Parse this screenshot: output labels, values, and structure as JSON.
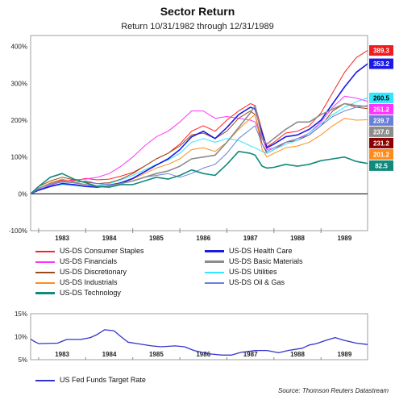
{
  "header": {
    "title": "Sector Return",
    "subtitle": "Return 10/31/1982 through 12/31/1989"
  },
  "source": "Source: Thomson Reuters Datastream",
  "chart_data": [
    {
      "type": "line",
      "title": "Sector Return",
      "subtitle": "Return 10/31/1982 through 12/31/1989",
      "x_ticks": [
        "1983",
        "1984",
        "1985",
        "1986",
        "1987",
        "1988",
        "1989"
      ],
      "x_range": [
        1982.83,
        1989.99
      ],
      "y_ticks": [
        "400%",
        "300%",
        "200%",
        "100%",
        "0%",
        "-100%"
      ],
      "y_tick_values": [
        400,
        300,
        200,
        100,
        0,
        -100
      ],
      "ylim": [
        -100,
        430
      ],
      "grid": false,
      "legend": "below",
      "series": [
        {
          "name": "US-DS Consumer Staples",
          "color": "#ff2020",
          "end_label": "389.3",
          "label_bg": "#ee1c1c",
          "label_fg": "#ffffff",
          "width": 1.0,
          "x": [
            1982.83,
            1983.0,
            1983.25,
            1983.5,
            1983.75,
            1984.0,
            1984.25,
            1984.5,
            1984.75,
            1985.0,
            1985.25,
            1985.5,
            1985.75,
            1986.0,
            1986.25,
            1986.5,
            1986.75,
            1987.0,
            1987.25,
            1987.5,
            1987.6,
            1987.75,
            1987.85,
            1988.0,
            1988.25,
            1988.5,
            1988.75,
            1989.0,
            1989.25,
            1989.5,
            1989.75,
            1989.99
          ],
          "y": [
            0,
            15,
            28,
            38,
            35,
            42,
            38,
            40,
            48,
            58,
            75,
            95,
            110,
            135,
            170,
            185,
            170,
            200,
            225,
            245,
            240,
            170,
            128,
            140,
            165,
            170,
            185,
            220,
            275,
            330,
            370,
            389.3
          ]
        },
        {
          "name": "US-DS Health Care",
          "color": "#1a1ae6",
          "end_label": "353.2",
          "label_bg": "#1a1ae6",
          "label_fg": "#ffffff",
          "width": 1.6,
          "x": [
            1982.83,
            1983.0,
            1983.25,
            1983.5,
            1983.75,
            1984.0,
            1984.25,
            1984.5,
            1984.75,
            1985.0,
            1985.25,
            1985.5,
            1985.75,
            1986.0,
            1986.25,
            1986.5,
            1986.75,
            1987.0,
            1987.25,
            1987.5,
            1987.6,
            1987.75,
            1987.85,
            1988.0,
            1988.25,
            1988.5,
            1988.75,
            1989.0,
            1989.25,
            1989.5,
            1989.75,
            1989.99
          ],
          "y": [
            0,
            10,
            20,
            28,
            25,
            20,
            18,
            22,
            30,
            42,
            60,
            78,
            95,
            120,
            155,
            170,
            150,
            180,
            215,
            235,
            230,
            165,
            125,
            135,
            155,
            160,
            175,
            200,
            245,
            290,
            330,
            353.2
          ]
        },
        {
          "name": "US-DS Financials",
          "color": "#ff33ff",
          "end_label": "251.2",
          "label_bg": "#ff33ff",
          "label_fg": "#ffffff",
          "width": 1.0,
          "x": [
            1982.83,
            1983.0,
            1983.25,
            1983.5,
            1983.75,
            1984.0,
            1984.25,
            1984.5,
            1984.75,
            1985.0,
            1985.25,
            1985.5,
            1985.75,
            1986.0,
            1986.25,
            1986.5,
            1986.75,
            1987.0,
            1987.25,
            1987.5,
            1987.6,
            1987.75,
            1987.85,
            1988.0,
            1988.25,
            1988.5,
            1988.75,
            1989.0,
            1989.25,
            1989.5,
            1989.75,
            1989.99
          ],
          "y": [
            0,
            12,
            22,
            35,
            38,
            40,
            45,
            55,
            75,
            100,
            130,
            155,
            170,
            195,
            225,
            225,
            205,
            210,
            205,
            200,
            195,
            150,
            120,
            125,
            140,
            150,
            165,
            195,
            235,
            265,
            260,
            251.2
          ]
        },
        {
          "name": "US-DS Basic Materials",
          "color": "#8c8c8c",
          "end_label": "237.0",
          "label_bg": "#8c8c8c",
          "label_fg": "#ffffff",
          "width": 1.6,
          "x": [
            1982.83,
            1983.0,
            1983.25,
            1983.5,
            1983.75,
            1984.0,
            1984.25,
            1984.5,
            1984.75,
            1985.0,
            1985.25,
            1985.5,
            1985.75,
            1986.0,
            1986.25,
            1986.5,
            1986.75,
            1987.0,
            1987.25,
            1987.5,
            1987.6,
            1987.75,
            1987.85,
            1988.0,
            1988.25,
            1988.5,
            1988.75,
            1989.0,
            1989.25,
            1989.5,
            1989.75,
            1989.99
          ],
          "y": [
            0,
            15,
            28,
            35,
            30,
            25,
            20,
            22,
            28,
            35,
            45,
            55,
            62,
            75,
            95,
            100,
            105,
            140,
            180,
            220,
            240,
            150,
            135,
            150,
            175,
            195,
            195,
            215,
            230,
            245,
            240,
            237.0
          ]
        },
        {
          "name": "US-DS Discretionary",
          "color": "#9b4a1e",
          "end_label": "231.2",
          "label_bg": "#8b0000",
          "label_fg": "#ffffff",
          "width": 1.0,
          "x": [
            1982.83,
            1983.0,
            1983.25,
            1983.5,
            1983.75,
            1984.0,
            1984.25,
            1984.5,
            1984.75,
            1985.0,
            1985.25,
            1985.5,
            1985.75,
            1986.0,
            1986.25,
            1986.5,
            1986.75,
            1987.0,
            1987.25,
            1987.5,
            1987.6,
            1987.75,
            1987.85,
            1988.0,
            1988.25,
            1988.5,
            1988.75,
            1989.0,
            1989.25,
            1989.5,
            1989.75,
            1989.99
          ],
          "y": [
            0,
            20,
            35,
            45,
            38,
            32,
            28,
            30,
            40,
            55,
            75,
            95,
            110,
            130,
            160,
            165,
            150,
            170,
            205,
            225,
            215,
            135,
            110,
            120,
            140,
            145,
            160,
            185,
            225,
            245,
            235,
            231.2
          ]
        },
        {
          "name": "US-DS Utilities",
          "color": "#33e6ff",
          "end_label": "260.5",
          "label_bg": "#33e6ff",
          "label_fg": "#000000",
          "width": 1.0,
          "x": [
            1982.83,
            1983.0,
            1983.25,
            1983.5,
            1983.75,
            1984.0,
            1984.25,
            1984.5,
            1984.75,
            1985.0,
            1985.25,
            1985.5,
            1985.75,
            1986.0,
            1986.25,
            1986.5,
            1986.75,
            1987.0,
            1987.25,
            1987.5,
            1987.6,
            1987.75,
            1987.85,
            1988.0,
            1988.25,
            1988.5,
            1988.75,
            1989.0,
            1989.25,
            1989.5,
            1989.75,
            1989.99
          ],
          "y": [
            0,
            12,
            20,
            25,
            22,
            20,
            22,
            28,
            38,
            50,
            65,
            80,
            92,
            110,
            140,
            150,
            140,
            150,
            145,
            130,
            125,
            115,
            110,
            120,
            135,
            145,
            165,
            190,
            215,
            235,
            250,
            260.5
          ]
        },
        {
          "name": "US-DS Industrials",
          "color": "#ff8c1a",
          "end_label": "201.2",
          "label_bg": "#ff8c1a",
          "label_fg": "#ffffff",
          "width": 1.0,
          "x": [
            1982.83,
            1983.0,
            1983.25,
            1983.5,
            1983.75,
            1984.0,
            1984.25,
            1984.5,
            1984.75,
            1985.0,
            1985.25,
            1985.5,
            1985.75,
            1986.0,
            1986.25,
            1986.5,
            1986.75,
            1987.0,
            1987.25,
            1987.5,
            1987.6,
            1987.75,
            1987.85,
            1988.0,
            1988.25,
            1988.5,
            1988.75,
            1989.0,
            1989.25,
            1989.5,
            1989.75,
            1989.99
          ],
          "y": [
            0,
            15,
            30,
            40,
            32,
            25,
            20,
            22,
            30,
            40,
            55,
            70,
            80,
            95,
            120,
            125,
            115,
            140,
            175,
            205,
            215,
            120,
            100,
            110,
            125,
            130,
            140,
            160,
            185,
            205,
            200,
            201.2
          ]
        },
        {
          "name": "US-DS Oil & Gas",
          "color": "#6a7fd9",
          "end_label": "239.7",
          "label_bg": "#6a7fd9",
          "label_fg": "#ffffff",
          "width": 1.0,
          "x": [
            1982.83,
            1983.0,
            1983.25,
            1983.5,
            1983.75,
            1984.0,
            1984.25,
            1984.5,
            1984.75,
            1985.0,
            1985.25,
            1985.5,
            1985.75,
            1986.0,
            1986.25,
            1986.5,
            1986.75,
            1987.0,
            1987.25,
            1987.5,
            1987.6,
            1987.75,
            1987.85,
            1988.0,
            1988.25,
            1988.5,
            1988.75,
            1989.0,
            1989.25,
            1989.5,
            1989.75,
            1989.99
          ],
          "y": [
            0,
            10,
            25,
            32,
            30,
            35,
            28,
            25,
            30,
            35,
            45,
            50,
            55,
            45,
            55,
            70,
            80,
            110,
            150,
            175,
            185,
            135,
            115,
            125,
            140,
            150,
            160,
            185,
            210,
            225,
            235,
            239.7
          ]
        },
        {
          "name": "US-DS Technology",
          "color": "#118a7a",
          "end_label": "82.5",
          "label_bg": "#118a7a",
          "label_fg": "#ffffff",
          "width": 1.6,
          "x": [
            1982.83,
            1983.0,
            1983.25,
            1983.5,
            1983.75,
            1984.0,
            1984.25,
            1984.5,
            1984.75,
            1985.0,
            1985.25,
            1985.5,
            1985.75,
            1986.0,
            1986.25,
            1986.5,
            1986.75,
            1987.0,
            1987.25,
            1987.5,
            1987.6,
            1987.75,
            1987.85,
            1988.0,
            1988.25,
            1988.5,
            1988.75,
            1989.0,
            1989.25,
            1989.5,
            1989.75,
            1989.99
          ],
          "y": [
            0,
            20,
            45,
            55,
            40,
            30,
            20,
            18,
            25,
            25,
            35,
            45,
            40,
            50,
            65,
            55,
            50,
            80,
            115,
            110,
            105,
            75,
            70,
            72,
            80,
            75,
            80,
            90,
            95,
            100,
            88,
            82.5
          ]
        }
      ]
    },
    {
      "type": "line",
      "x_ticks": [
        "1983",
        "1984",
        "1985",
        "1986",
        "1987",
        "1988",
        "1989"
      ],
      "x_range": [
        1982.83,
        1989.99
      ],
      "y_ticks": [
        "15%",
        "10%",
        "5%"
      ],
      "y_tick_values": [
        15,
        10,
        5
      ],
      "ylim": [
        5,
        15
      ],
      "grid": false,
      "legend": "below",
      "series": [
        {
          "name": "US Fed Funds Target Rate",
          "color": "#3333cc",
          "x": [
            1982.83,
            1982.9,
            1983.0,
            1983.4,
            1983.6,
            1983.9,
            1984.1,
            1984.25,
            1984.4,
            1984.6,
            1984.75,
            1984.9,
            1985.1,
            1985.4,
            1985.6,
            1985.9,
            1986.1,
            1986.3,
            1986.6,
            1986.9,
            1987.1,
            1987.3,
            1987.6,
            1987.85,
            1988.1,
            1988.3,
            1988.6,
            1988.75,
            1988.9,
            1989.1,
            1989.3,
            1989.5,
            1989.75,
            1989.99
          ],
          "y": [
            9.5,
            9.0,
            8.5,
            8.6,
            9.4,
            9.4,
            9.8,
            10.5,
            11.5,
            11.3,
            10.0,
            8.8,
            8.5,
            8.0,
            7.8,
            8.0,
            7.8,
            7.0,
            6.3,
            6.0,
            6.0,
            6.6,
            7.0,
            7.0,
            6.5,
            7.0,
            7.5,
            8.2,
            8.5,
            9.2,
            9.8,
            9.2,
            8.6,
            8.3
          ]
        }
      ]
    }
  ]
}
